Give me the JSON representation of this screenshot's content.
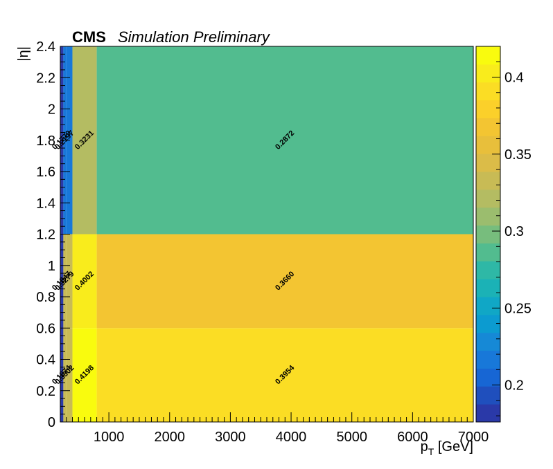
{
  "chart_data": {
    "type": "heatmap",
    "title_bold": "CMS",
    "title_italic": "Simulation Preliminary",
    "xlabel_main": "p",
    "xlabel_sub": "T",
    "xlabel_unit": " [GeV]",
    "ylabel": "|η|",
    "x_edges": [
      200,
      250,
      300,
      400,
      800,
      7000
    ],
    "y_edges": [
      0.0,
      0.6,
      1.2,
      2.4
    ],
    "xlim": [
      200,
      7000
    ],
    "ylim": [
      0,
      2.4
    ],
    "zlim": [
      0.176,
      0.42
    ],
    "values": [
      [
        0.1874,
        0.3302,
        0.3302,
        0.4198,
        0.3954
      ],
      [
        0.1847,
        0.3279,
        0.3279,
        0.4002,
        0.366
      ],
      [
        0.1779,
        0.2197,
        0.2197,
        0.3231,
        0.2872
      ]
    ],
    "value_labels": [
      [
        "0.1874",
        "0.3302",
        "",
        "0.4198",
        "0.3954"
      ],
      [
        "0.1847",
        "0.3279",
        "",
        "0.4002",
        "0.3660"
      ],
      [
        "0.1779",
        "0.2197",
        "",
        "0.3231",
        "0.2872"
      ]
    ],
    "x_ticks": [
      "1000",
      "2000",
      "3000",
      "4000",
      "5000",
      "6000",
      "7000"
    ],
    "y_ticks": [
      "0",
      "0.2",
      "0.4",
      "0.6",
      "0.8",
      "1",
      "1.2",
      "1.4",
      "1.6",
      "1.8",
      "2",
      "2.2",
      "2.4"
    ],
    "z_ticks": [
      "0.2",
      "0.25",
      "0.3",
      "0.35",
      "0.4"
    ],
    "palette": [
      "#2a39a8",
      "#1f4fbd",
      "#1766d4",
      "#1878d9",
      "#1689d6",
      "#0c9bd0",
      "#10a7c6",
      "#1bb2b6",
      "#2eb8a6",
      "#52bc8f",
      "#77bd7d",
      "#9bbd6e",
      "#b4bc62",
      "#c8bb55",
      "#dbbc48",
      "#e8bf3b",
      "#f3c532",
      "#fbd02a",
      "#fbdd24",
      "#f9ec1c",
      "#f9fb0e"
    ]
  }
}
